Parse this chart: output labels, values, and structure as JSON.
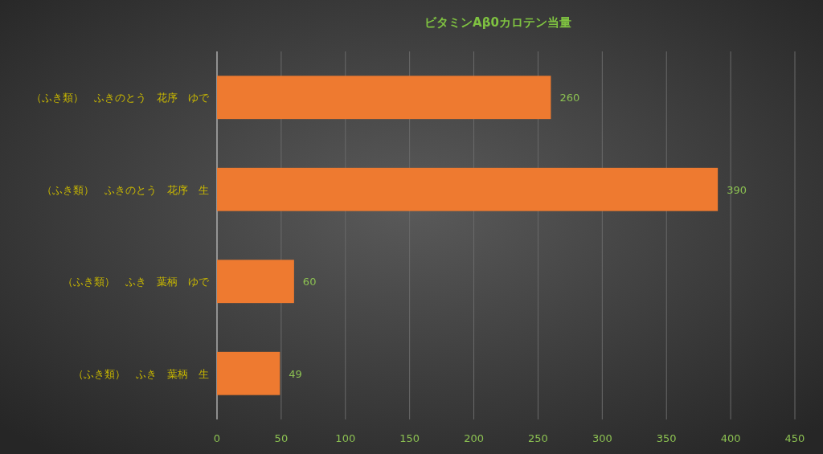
{
  "chart_data": {
    "type": "bar",
    "orientation": "horizontal",
    "title": "ビタミンAβ0カロテン当量",
    "categories": [
      "（ふき類）　ふきのとう　花序　ゆで",
      "（ふき類）　ふきのとう　花序　生",
      "（ふき類）　ふき　葉柄　ゆで",
      "（ふき類）　ふき　葉柄　生"
    ],
    "values": [
      260,
      390,
      60,
      49
    ],
    "color": "#ee7a30",
    "xlim": [
      0,
      450
    ],
    "xticks": [
      0,
      50,
      100,
      150,
      200,
      250,
      300,
      350,
      400,
      450
    ],
    "grid": "x",
    "data_labels": true
  }
}
